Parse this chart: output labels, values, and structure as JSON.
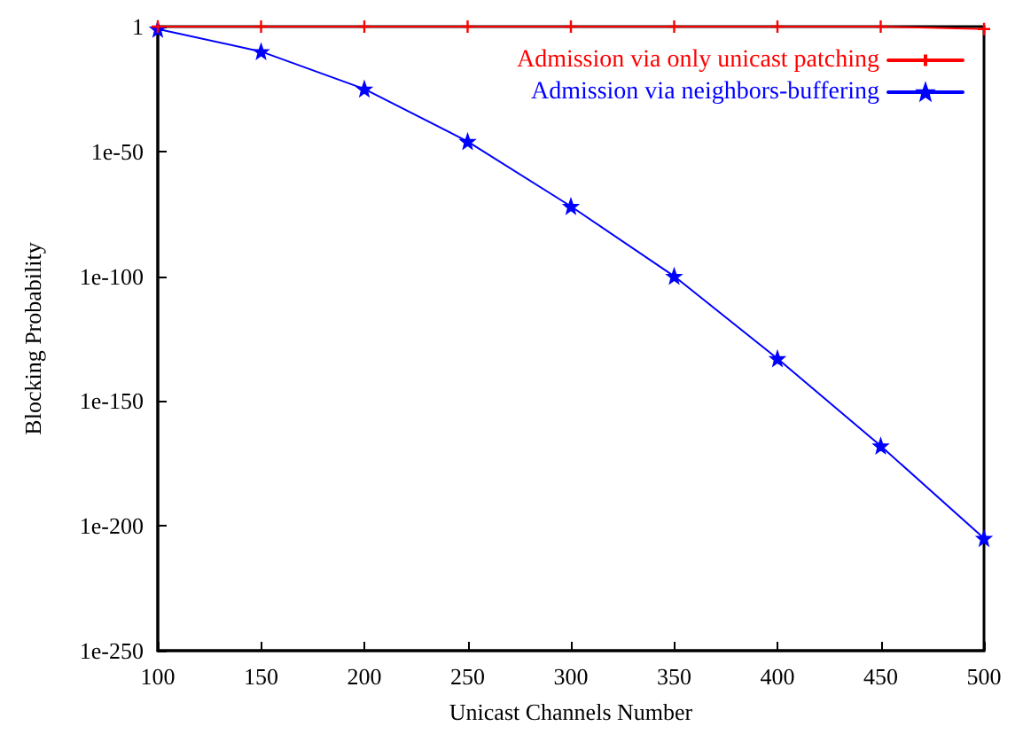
{
  "chart_data": {
    "type": "line",
    "xlabel": "Unicast Channels Number",
    "ylabel": "Blocking Probability",
    "x": [
      100,
      150,
      200,
      250,
      300,
      350,
      400,
      450,
      500
    ],
    "series": [
      {
        "name": "Admission via only unicast patching",
        "color": "#ff0000",
        "marker": "cross",
        "values": [
          1,
          1,
          1,
          1,
          1,
          1,
          1,
          1,
          0.1
        ]
      },
      {
        "name": "Admission via neighbors-buffering",
        "color": "#0000ff",
        "marker": "star",
        "values": [
          0.1,
          1e-10,
          1e-25,
          1e-46,
          1e-72,
          1e-100,
          1e-133,
          1e-168,
          1e-205
        ]
      }
    ],
    "log": "y",
    "xlim": [
      100,
      500
    ],
    "xticks": [
      100,
      150,
      200,
      250,
      300,
      350,
      400,
      450,
      500
    ],
    "ylim": [
      1e-250,
      1
    ],
    "yticks": [
      {
        "value": 1e-250,
        "label": "1e-250"
      },
      {
        "value": 1e-200,
        "label": "1e-200"
      },
      {
        "value": 1e-150,
        "label": "1e-150"
      },
      {
        "value": 1e-100,
        "label": "1e-100"
      },
      {
        "value": 1e-50,
        "label": "1e-50"
      },
      {
        "value": 1,
        "label": "1"
      }
    ],
    "grid": false,
    "legend": "top right",
    "line_style": "solid"
  }
}
